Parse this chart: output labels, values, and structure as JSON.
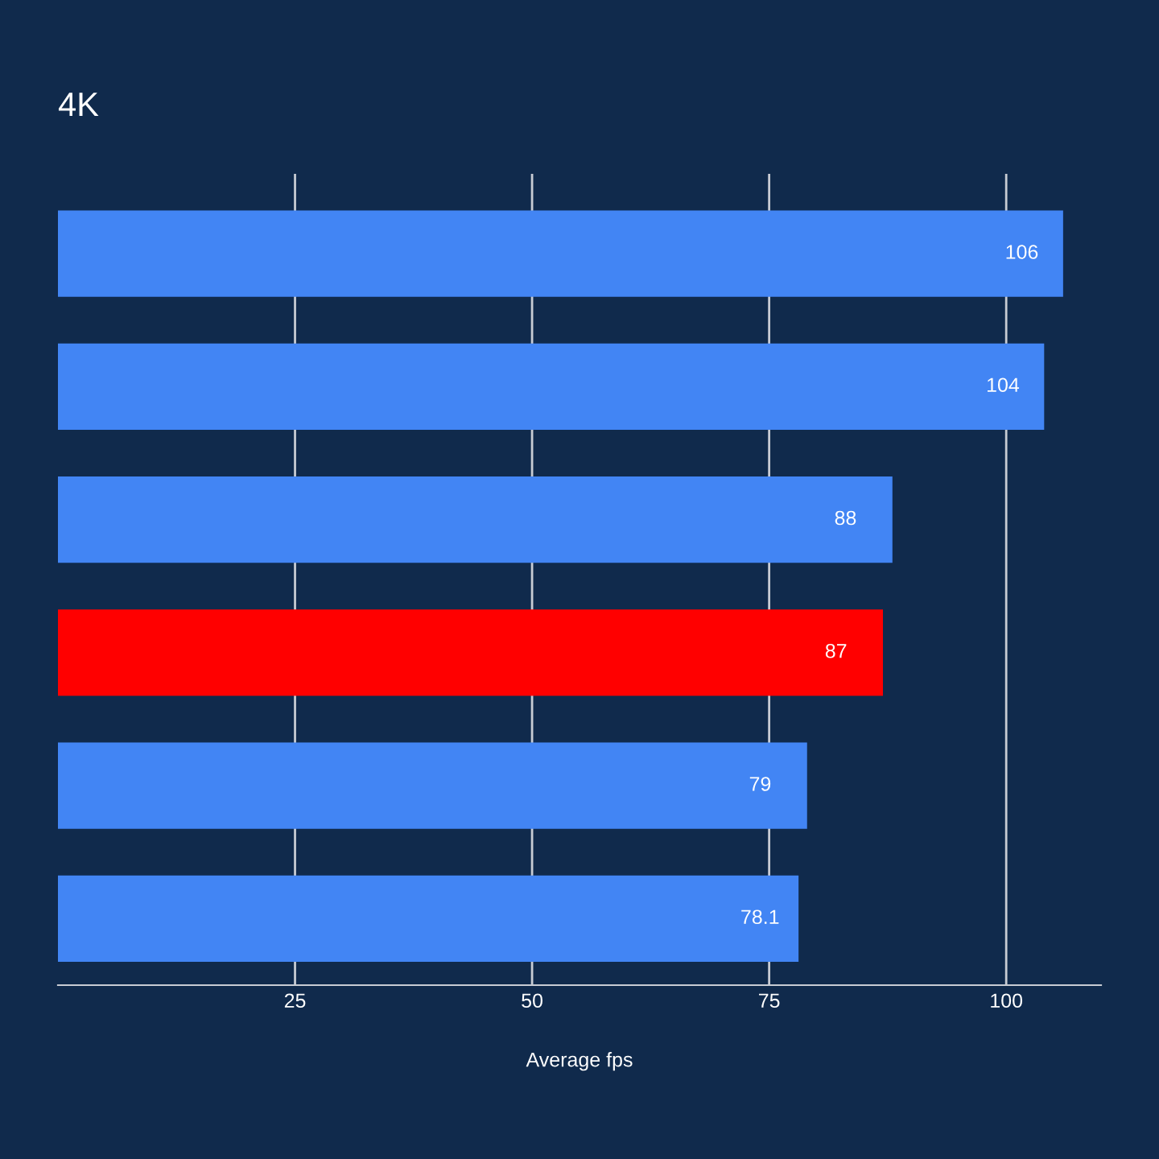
{
  "chart_data": {
    "type": "bar",
    "orientation": "horizontal",
    "title": "4K",
    "xlabel": "Average fps",
    "categories": [
      null,
      null,
      null,
      null,
      null,
      null
    ],
    "values": [
      106,
      104,
      88,
      87,
      79,
      78.1
    ],
    "colors": [
      "#4285f4",
      "#4285f4",
      "#4285f4",
      "#ff0000",
      "#4285f4",
      "#4285f4"
    ],
    "xlim": [
      0,
      110
    ],
    "xticks": [
      25,
      50,
      75,
      100
    ],
    "grid": "x",
    "data_labels": true
  }
}
